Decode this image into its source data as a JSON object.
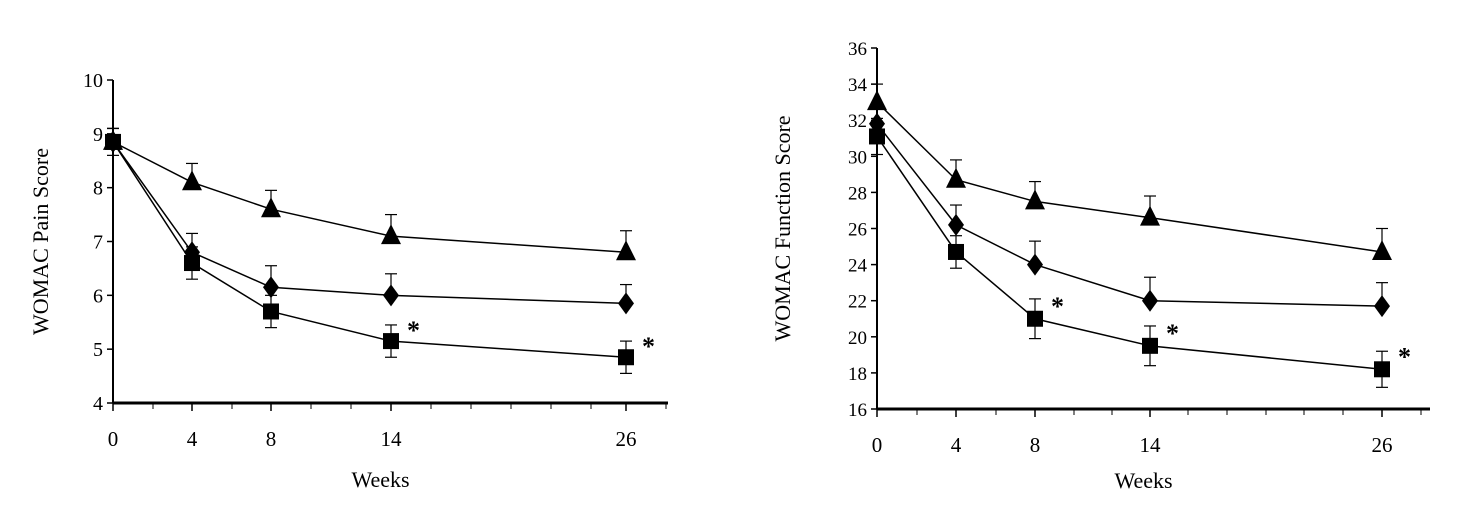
{
  "chart_data": [
    {
      "type": "line",
      "title": "",
      "xlabel": "Weeks",
      "ylabel": "WOMAC Pain Score",
      "x": [
        0,
        4,
        8,
        14,
        26
      ],
      "x_tick_labels": [
        "0",
        "4",
        "8",
        "14",
        "26"
      ],
      "ylim": [
        4,
        10
      ],
      "y_ticks": [
        4,
        5,
        6,
        7,
        8,
        9,
        10
      ],
      "grid": false,
      "series": [
        {
          "marker": "triangle",
          "values": [
            8.85,
            8.1,
            7.6,
            7.1,
            6.8
          ],
          "errors": [
            0.25,
            0.35,
            0.35,
            0.4,
            0.4
          ],
          "sig": [
            false,
            false,
            false,
            false,
            false
          ]
        },
        {
          "marker": "diamond",
          "values": [
            8.85,
            6.8,
            6.15,
            6.0,
            5.85
          ],
          "errors": [
            0.25,
            0.35,
            0.4,
            0.4,
            0.35
          ],
          "sig": [
            false,
            false,
            false,
            false,
            false
          ]
        },
        {
          "marker": "square",
          "values": [
            8.85,
            6.6,
            5.7,
            5.15,
            4.85
          ],
          "errors": [
            0.25,
            0.3,
            0.3,
            0.3,
            0.3
          ],
          "sig": [
            false,
            false,
            false,
            true,
            true
          ]
        }
      ],
      "significance_mark": "*"
    },
    {
      "type": "line",
      "title": "",
      "xlabel": "Weeks",
      "ylabel": "WOMAC Function Score",
      "x": [
        0,
        4,
        8,
        14,
        26
      ],
      "x_tick_labels": [
        "0",
        "4",
        "8",
        "14",
        "26"
      ],
      "ylim": [
        16,
        36
      ],
      "y_ticks": [
        16,
        18,
        20,
        22,
        24,
        26,
        28,
        30,
        32,
        34,
        36
      ],
      "grid": false,
      "series": [
        {
          "marker": "triangle",
          "values": [
            33.0,
            28.7,
            27.5,
            26.6,
            24.7
          ],
          "errors": [
            1.0,
            1.1,
            1.1,
            1.2,
            1.3
          ],
          "sig": [
            false,
            false,
            false,
            false,
            false
          ]
        },
        {
          "marker": "diamond",
          "values": [
            31.8,
            26.2,
            24.0,
            22.0,
            21.7
          ],
          "errors": [
            1.0,
            1.1,
            1.3,
            1.3,
            1.3
          ],
          "sig": [
            false,
            false,
            false,
            false,
            false
          ]
        },
        {
          "marker": "square",
          "values": [
            31.1,
            24.7,
            21.0,
            19.5,
            18.2
          ],
          "errors": [
            1.0,
            0.9,
            1.1,
            1.1,
            1.0
          ],
          "sig": [
            false,
            false,
            true,
            true,
            true
          ]
        }
      ],
      "significance_mark": "*"
    }
  ]
}
